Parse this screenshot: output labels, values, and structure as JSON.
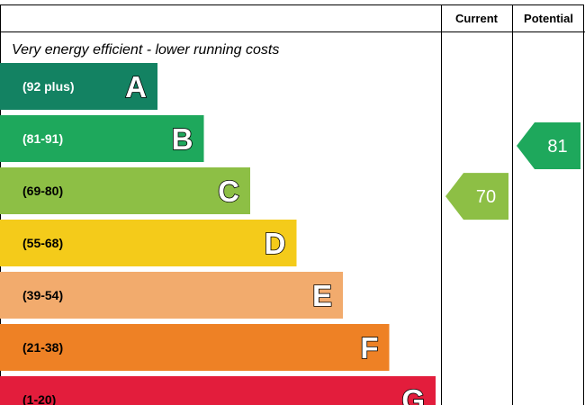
{
  "chart_data": {
    "type": "bar",
    "columns": {
      "current": "Current",
      "potential": "Potential"
    },
    "top_caption": "Very energy efficient - lower running costs",
    "bands": [
      {
        "letter": "A",
        "range": "(92 plus)",
        "min": 92,
        "max": 100,
        "color": "#138262",
        "text_color": "#ffffff"
      },
      {
        "letter": "B",
        "range": "(81-91)",
        "min": 81,
        "max": 91,
        "color": "#1ea85c",
        "text_color": "#ffffff"
      },
      {
        "letter": "C",
        "range": "(69-80)",
        "min": 69,
        "max": 80,
        "color": "#8dbf45",
        "text_color": "#000000"
      },
      {
        "letter": "D",
        "range": "(55-68)",
        "min": 55,
        "max": 68,
        "color": "#f4cb1a",
        "text_color": "#000000"
      },
      {
        "letter": "E",
        "range": "(39-54)",
        "min": 39,
        "max": 54,
        "color": "#f2ab6d",
        "text_color": "#000000"
      },
      {
        "letter": "F",
        "range": "(21-38)",
        "min": 21,
        "max": 38,
        "color": "#ee8125",
        "text_color": "#000000"
      },
      {
        "letter": "G",
        "range": "(1-20)",
        "min": 1,
        "max": 20,
        "color": "#e31d3c",
        "text_color": "#000000"
      }
    ],
    "ratings": [
      {
        "column": "current",
        "value": 70,
        "band": "C",
        "color": "#8dbf45"
      },
      {
        "column": "potential",
        "value": 81,
        "band": "B",
        "color": "#1ea85c"
      }
    ]
  }
}
